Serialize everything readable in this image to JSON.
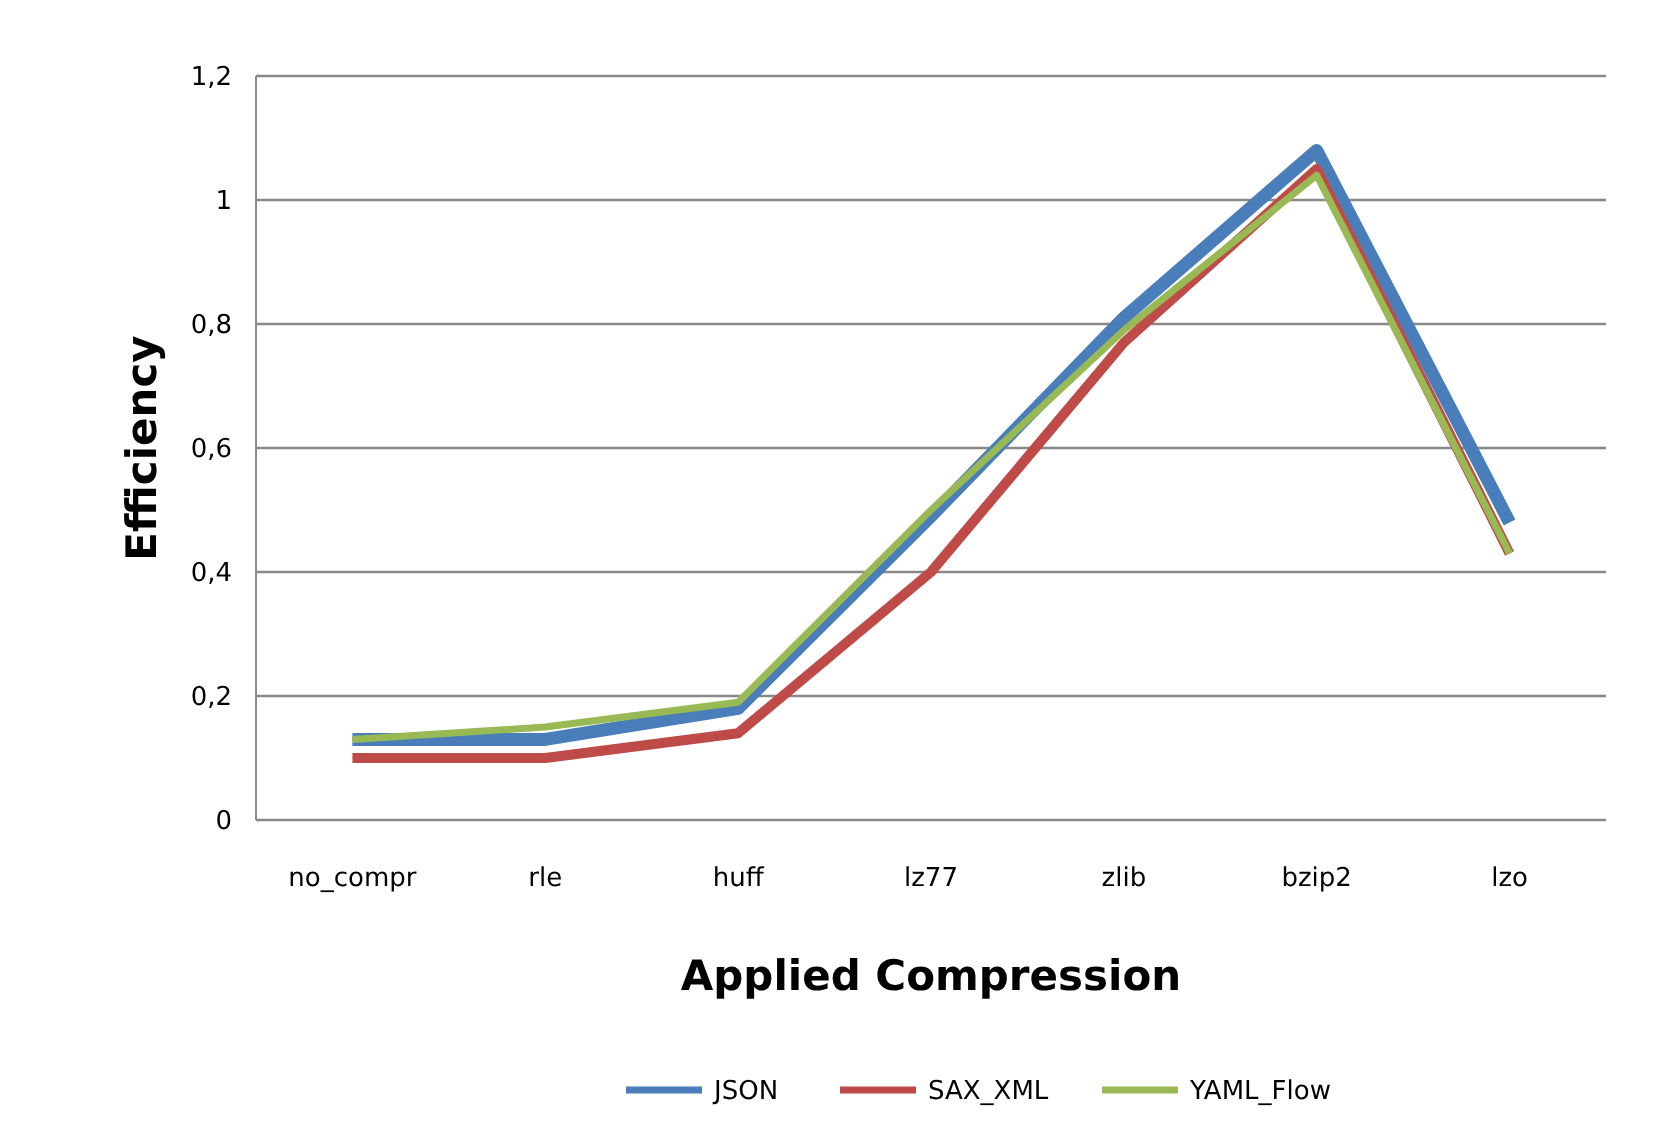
{
  "chart_data": {
    "type": "line",
    "xlabel": "Applied Compression",
    "ylabel": "Efficiency",
    "categories": [
      "no_compr",
      "rle",
      "huff",
      "lz77",
      "zlib",
      "bzip2",
      "lzo"
    ],
    "series": [
      {
        "name": "JSON",
        "color": "#4a7ebb",
        "values": [
          0.13,
          0.13,
          0.18,
          0.49,
          0.81,
          1.08,
          0.48
        ]
      },
      {
        "name": "SAX_XML",
        "color": "#be4b48",
        "values": [
          0.1,
          0.1,
          0.14,
          0.4,
          0.77,
          1.05,
          0.43
        ]
      },
      {
        "name": "YAML_Flow",
        "color": "#98b954",
        "values": [
          0.13,
          0.15,
          0.19,
          0.5,
          0.79,
          1.04,
          0.43
        ]
      }
    ],
    "ylim": [
      0,
      1.2
    ],
    "yticks": [
      {
        "value": 0,
        "label": "0"
      },
      {
        "value": 0.2,
        "label": "0,2"
      },
      {
        "value": 0.4,
        "label": "0,4"
      },
      {
        "value": 0.6,
        "label": "0,6"
      },
      {
        "value": 0.8,
        "label": "0,8"
      },
      {
        "value": 1,
        "label": "1"
      },
      {
        "value": 1.2,
        "label": "1,2"
      }
    ],
    "grid": "y",
    "legend": "bottom",
    "marker": "none",
    "line_style": "solid"
  }
}
